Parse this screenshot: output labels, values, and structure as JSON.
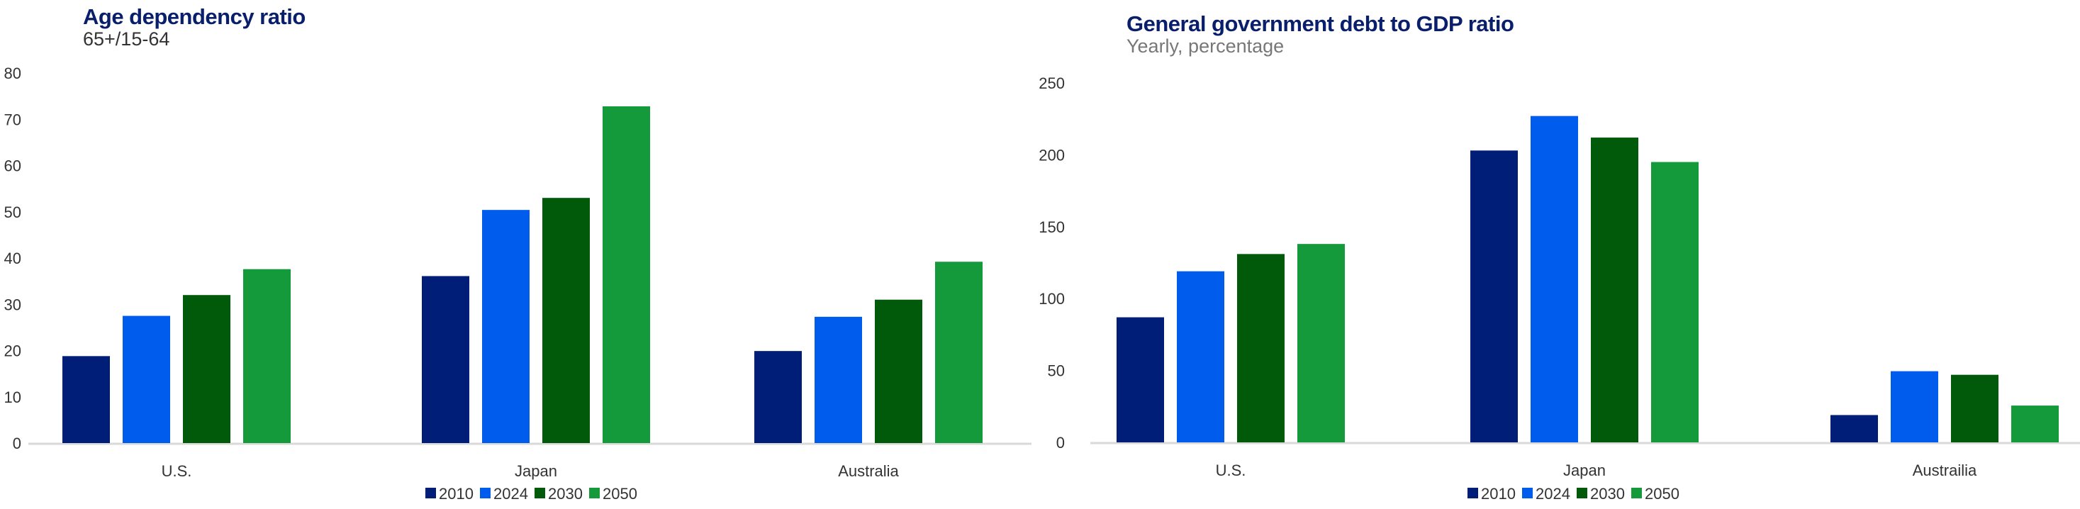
{
  "colors": {
    "2010": "#001e78",
    "2024": "#005cec",
    "2030": "#005a09",
    "2050": "#14993b",
    "title": "#0a1f6b",
    "axis": "#d9d9d9"
  },
  "chart_data": [
    {
      "type": "bar",
      "title": "Age dependency ratio",
      "subtitle": "65+/15-64",
      "xlabel": "",
      "ylabel": "",
      "ylim": [
        0,
        80
      ],
      "yticks": [
        0,
        10,
        20,
        30,
        40,
        50,
        60,
        70,
        80
      ],
      "grid": false,
      "legend": "bottom",
      "categories": [
        "U.S.",
        "Japan",
        "Australia"
      ],
      "series": [
        {
          "name": "2010",
          "values": [
            18.8,
            36.1,
            19.9
          ]
        },
        {
          "name": "2024",
          "values": [
            27.5,
            50.4,
            27.3
          ]
        },
        {
          "name": "2030",
          "values": [
            32.0,
            53.0,
            31.0
          ]
        },
        {
          "name": "2050",
          "values": [
            37.6,
            72.8,
            39.2
          ]
        }
      ]
    },
    {
      "type": "bar",
      "title": "General government debt to GDP ratio",
      "subtitle": "Yearly, percentage",
      "xlabel": "",
      "ylabel": "",
      "ylim": [
        0,
        250
      ],
      "yticks": [
        0,
        50,
        100,
        150,
        200,
        250
      ],
      "grid": false,
      "legend": "bottom",
      "categories": [
        "U.S.",
        "Japan",
        "Austrailia"
      ],
      "series": [
        {
          "name": "2010",
          "values": [
            87,
            203,
            19
          ]
        },
        {
          "name": "2024",
          "values": [
            119,
            227,
            49.5
          ]
        },
        {
          "name": "2030",
          "values": [
            131,
            212,
            47
          ]
        },
        {
          "name": "2050",
          "values": [
            138,
            195,
            25.6
          ]
        }
      ]
    }
  ]
}
